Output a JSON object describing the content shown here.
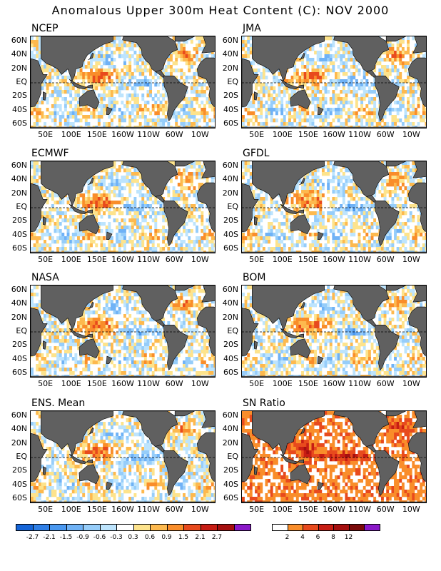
{
  "title": "Anomalous Upper 300m Heat Content (C): NOV 2000",
  "chart_data": [
    {
      "type": "heatmap",
      "title": "NCEP",
      "kind": "anomaly"
    },
    {
      "type": "heatmap",
      "title": "JMA",
      "kind": "anomaly"
    },
    {
      "type": "heatmap",
      "title": "ECMWF",
      "kind": "anomaly"
    },
    {
      "type": "heatmap",
      "title": "GFDL",
      "kind": "anomaly"
    },
    {
      "type": "heatmap",
      "title": "NASA",
      "kind": "anomaly"
    },
    {
      "type": "heatmap",
      "title": "BOM",
      "kind": "anomaly"
    },
    {
      "type": "heatmap",
      "title": "ENS. Mean",
      "kind": "anomaly"
    },
    {
      "type": "heatmap",
      "title": "SN Ratio",
      "kind": "ratio"
    }
  ],
  "y_ticks": [
    "60N",
    "40N",
    "20N",
    "EQ",
    "20S",
    "40S",
    "60S"
  ],
  "x_ticks": [
    "50E",
    "100E",
    "150E",
    "160W",
    "110W",
    "60W",
    "10W"
  ],
  "anomaly_colorbar": {
    "colors": [
      "#1565d8",
      "#2f7fe6",
      "#4a98f0",
      "#6fb2f6",
      "#96cdfa",
      "#bde4fd",
      "#ffffff",
      "#fde38c",
      "#fdb94e",
      "#f98d2a",
      "#e84a1d",
      "#c71d14",
      "#a50f0f",
      "#8a18c8"
    ],
    "labels": [
      "-2.7",
      "-2.1",
      "-1.5",
      "-0.9",
      "-0.6",
      "-0.3",
      "0.3",
      "0.6",
      "0.9",
      "1.5",
      "2.1",
      "2.7"
    ]
  },
  "ratio_colorbar": {
    "colors": [
      "#ffffff",
      "#f98d2a",
      "#e84a1d",
      "#c71d14",
      "#a50f0f",
      "#7a0a0a",
      "#8a18c8"
    ],
    "labels": [
      "2",
      "4",
      "6",
      "8",
      "12"
    ]
  },
  "land_color": "#606060"
}
